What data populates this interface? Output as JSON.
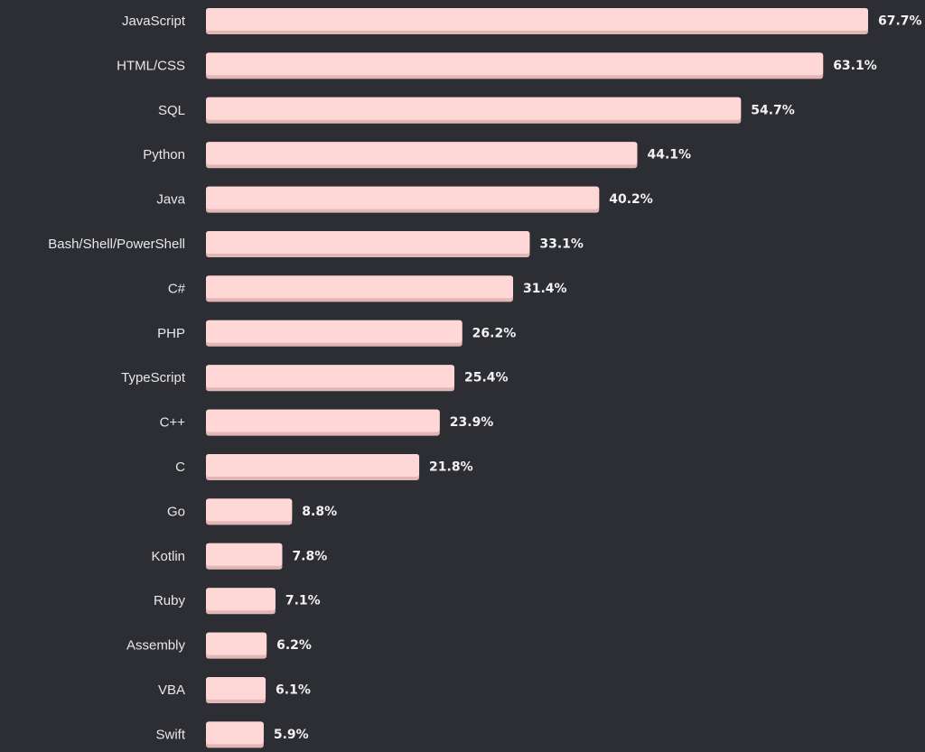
{
  "colors": {
    "background": "#2d2e33",
    "bar_fill": "#ffd7d7",
    "bar_shade": "#e3b6b6",
    "label_text": "#e8e8e8",
    "value_text": "#f2f2f2"
  },
  "chart_data": {
    "type": "bar",
    "orientation": "horizontal",
    "categories": [
      "JavaScript",
      "HTML/CSS",
      "SQL",
      "Python",
      "Java",
      "Bash/Shell/PowerShell",
      "C#",
      "PHP",
      "TypeScript",
      "C++",
      "C",
      "Go",
      "Kotlin",
      "Ruby",
      "Assembly",
      "VBA",
      "Swift"
    ],
    "values": [
      67.7,
      63.1,
      54.7,
      44.1,
      40.2,
      33.1,
      31.4,
      26.2,
      25.4,
      23.9,
      21.8,
      8.8,
      7.8,
      7.1,
      6.2,
      6.1,
      5.9
    ],
    "value_labels": [
      "67.7%",
      "63.1%",
      "54.7%",
      "44.1%",
      "40.2%",
      "33.1%",
      "31.4%",
      "26.2%",
      "25.4%",
      "23.9%",
      "21.8%",
      "8.8%",
      "7.8%",
      "7.1%",
      "6.2%",
      "6.1%",
      "5.9%"
    ],
    "title": "",
    "xlabel": "",
    "ylabel": "",
    "grid": false,
    "legend": "none"
  }
}
